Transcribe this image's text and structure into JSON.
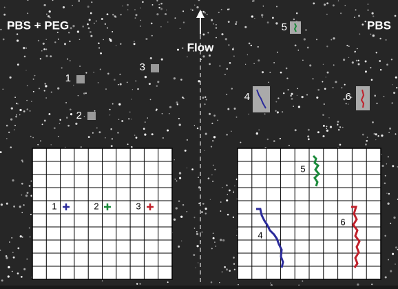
{
  "conditions": {
    "left": "PBS + PEG",
    "right": "PBS"
  },
  "flow": "Flow",
  "particles": [
    {
      "label": "1"
    },
    {
      "label": "2"
    },
    {
      "label": "3"
    },
    {
      "label": "4"
    },
    {
      "label": "5"
    },
    {
      "label": "6"
    }
  ],
  "left_grid": {
    "labels": [
      "1",
      "2",
      "3"
    ]
  },
  "right_grid": {
    "labels": [
      "5",
      "4",
      "6"
    ]
  }
}
